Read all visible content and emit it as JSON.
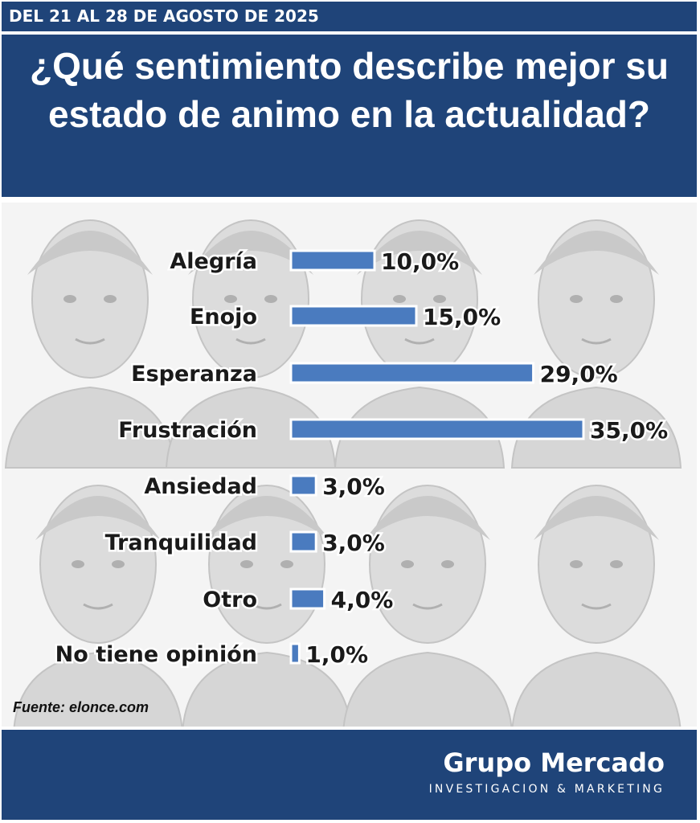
{
  "header": {
    "date_range": "DEL 21 AL 28 DE AGOSTO DE 2025",
    "question": "¿Qué sentimiento describe mejor su estado de animo en la actualidad?"
  },
  "chart_data": {
    "type": "bar",
    "orientation": "horizontal",
    "title": "¿Qué sentimiento describe mejor su estado de animo en la actualidad?",
    "categories": [
      "Alegría",
      "Enojo",
      "Esperanza",
      "Frustración",
      "Ansiedad",
      "Tranquilidad",
      "Otro",
      "No tiene opinión"
    ],
    "values": [
      10.0,
      15.0,
      29.0,
      35.0,
      3.0,
      3.0,
      4.0,
      1.0
    ],
    "data_labels": [
      "10,0%",
      "15,0%",
      "29,0%",
      "35,0%",
      "3,0%",
      "3,0%",
      "4,0%",
      "1,0%"
    ],
    "unit": "%",
    "grid": false,
    "legend": "none"
  },
  "colors": {
    "bar": "#4a7bbf",
    "bar_outline": "#ffffff",
    "header_bg": "#1f4479",
    "background": "#f4f4f4"
  },
  "source": {
    "text": "Fuente: elonce.com"
  },
  "footer": {
    "brand_name": "Grupo Mercado",
    "brand_tagline": "INVESTIGACION & MARKETING"
  },
  "decorations": {
    "background_illustration": "faces-collage-icon"
  }
}
